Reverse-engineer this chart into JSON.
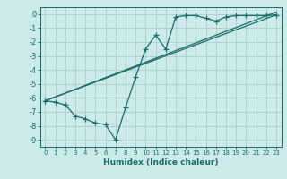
{
  "xlabel": "Humidex (Indice chaleur)",
  "background_color": "#cceaea",
  "grid_color": "#aacccc",
  "line_color": "#1a6b6b",
  "xlim": [
    -0.5,
    23.5
  ],
  "ylim": [
    -9.5,
    0.5
  ],
  "xticks": [
    0,
    1,
    2,
    3,
    4,
    5,
    6,
    7,
    8,
    9,
    10,
    11,
    12,
    13,
    14,
    15,
    16,
    17,
    18,
    19,
    20,
    21,
    22,
    23
  ],
  "yticks": [
    0,
    -1,
    -2,
    -3,
    -4,
    -5,
    -6,
    -7,
    -8,
    -9
  ],
  "series1_x": [
    0,
    1,
    2,
    3,
    4,
    5,
    6,
    7,
    8,
    9,
    10,
    11,
    12,
    13,
    14,
    15,
    16,
    17,
    18,
    19,
    20,
    21,
    22,
    23
  ],
  "series1_y": [
    -6.2,
    -6.3,
    -6.5,
    -7.3,
    -7.5,
    -7.8,
    -7.9,
    -9.0,
    -6.7,
    -4.5,
    -2.5,
    -1.5,
    -2.5,
    -0.2,
    -0.1,
    -0.1,
    -0.3,
    -0.5,
    -0.2,
    -0.1,
    -0.1,
    -0.1,
    -0.1,
    -0.05
  ],
  "series2_x": [
    0,
    23
  ],
  "series2_y": [
    -6.2,
    -0.05
  ],
  "series3_x": [
    0,
    23
  ],
  "series3_y": [
    -6.2,
    0.15
  ]
}
